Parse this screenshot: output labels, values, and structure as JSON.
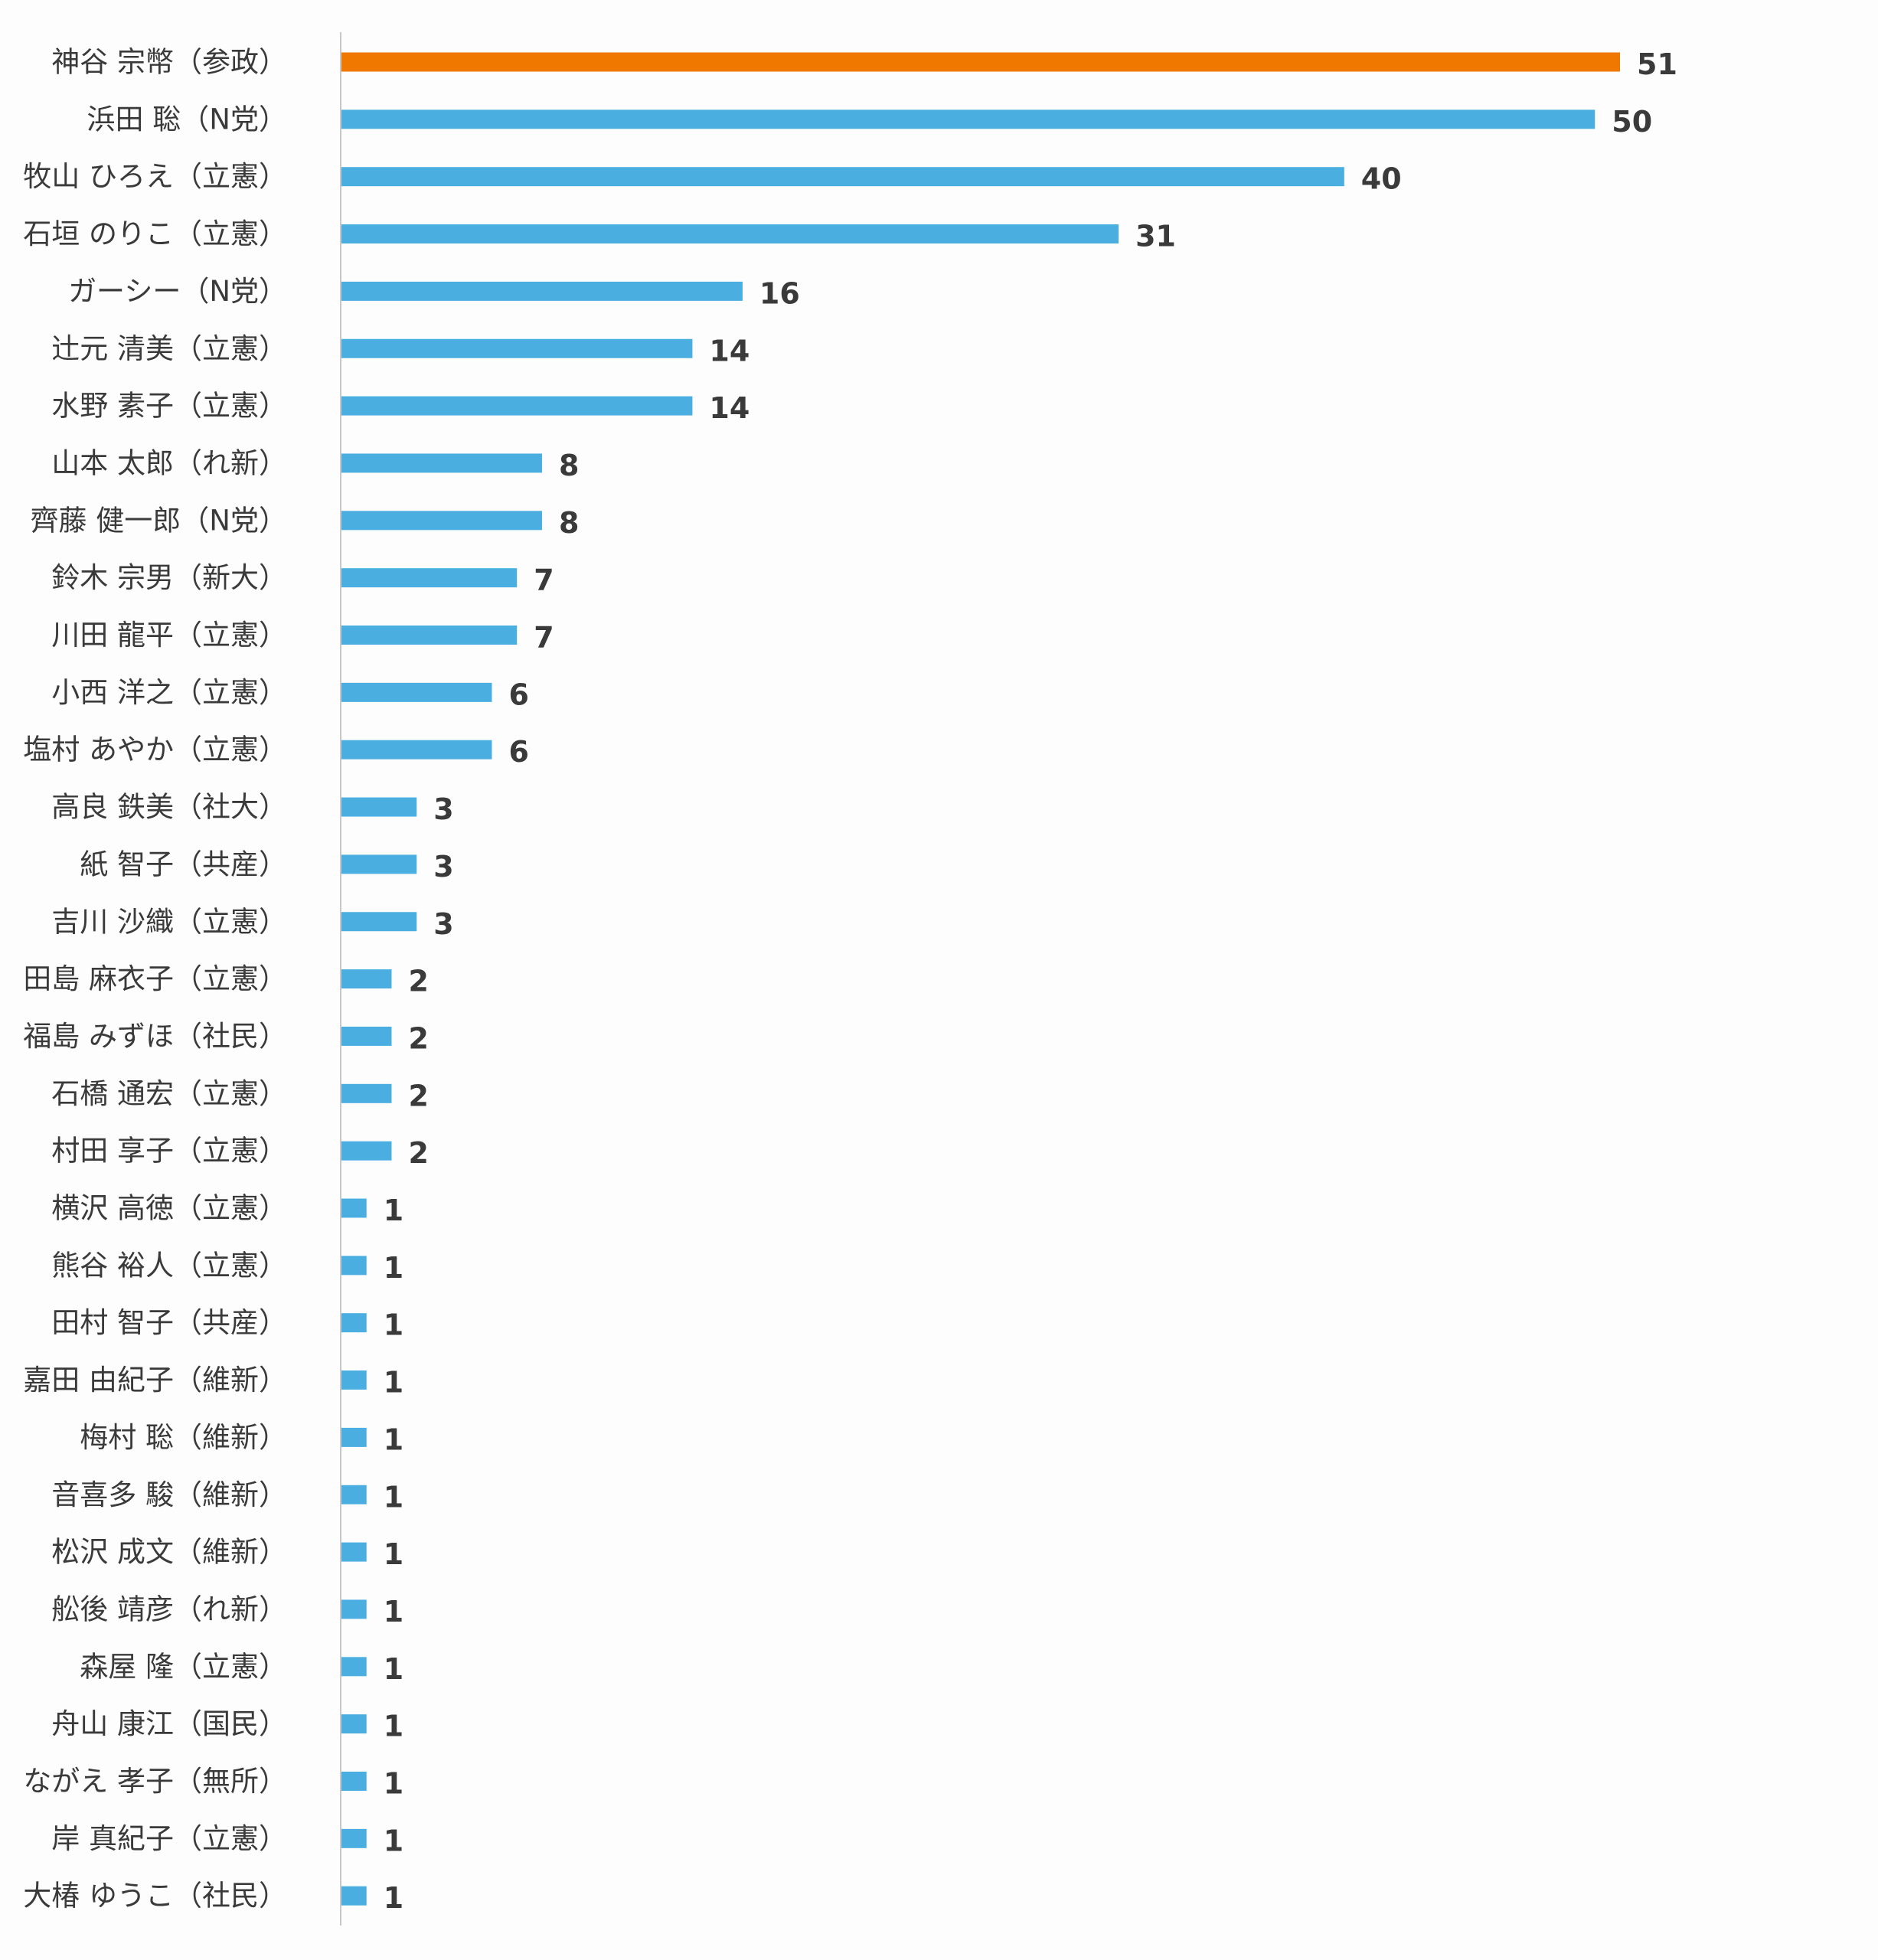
{
  "chart_data": {
    "type": "bar",
    "orientation": "horizontal",
    "title": "",
    "xlabel": "",
    "ylabel": "",
    "xlim": [
      0,
      54
    ],
    "grid": false,
    "legend": "none",
    "colors": {
      "default": "#4aafe0",
      "highlight": "#f07800",
      "axis": "#c8c8c8",
      "background": "#fdfdfd"
    },
    "highlight_index": 0,
    "categories": [
      "神谷 宗幣（参政）",
      "浜田 聡（N党）",
      "牧山 ひろえ（立憲）",
      "石垣 のりこ（立憲）",
      "ガーシー（N党）",
      "辻元 清美（立憲）",
      "水野 素子（立憲）",
      "山本 太郎（れ新）",
      "齊藤 健一郎（N党）",
      "鈴木 宗男（新大）",
      "川田 龍平（立憲）",
      "小西 洋之（立憲）",
      "塩村 あやか（立憲）",
      "高良 鉄美（社大）",
      "紙 智子（共産）",
      "吉川 沙織（立憲）",
      "田島 麻衣子（立憲）",
      "福島 みずほ（社民）",
      "石橋 通宏（立憲）",
      "村田 享子（立憲）",
      "横沢 高徳（立憲）",
      "熊谷 裕人（立憲）",
      "田村 智子（共産）",
      "嘉田 由紀子（維新）",
      "梅村 聡（維新）",
      "音喜多 駿（維新）",
      "松沢 成文（維新）",
      "舩後 靖彦（れ新）",
      "森屋 隆（立憲）",
      "舟山 康江（国民）",
      "ながえ 孝子（無所）",
      "岸 真紀子（立憲）",
      "大椿 ゆうこ（社民）"
    ],
    "values": [
      51,
      50,
      40,
      31,
      16,
      14,
      14,
      8,
      8,
      7,
      7,
      6,
      6,
      3,
      3,
      3,
      2,
      2,
      2,
      2,
      1,
      1,
      1,
      1,
      1,
      1,
      1,
      1,
      1,
      1,
      1,
      1,
      1
    ]
  }
}
